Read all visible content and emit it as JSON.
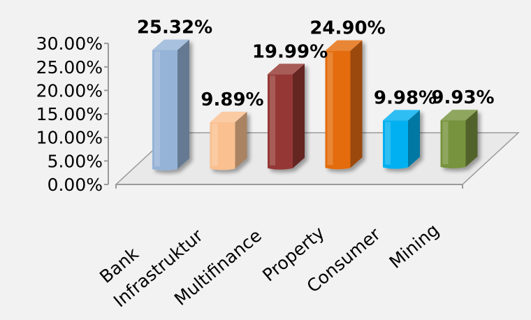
{
  "chart_data": {
    "type": "bar",
    "categories": [
      "Bank",
      "Infrastruktur",
      "Multifinance",
      "Property",
      "Consumer",
      "Mining"
    ],
    "values": [
      25.32,
      9.89,
      19.99,
      24.9,
      9.98,
      9.93
    ],
    "data_labels": [
      "25.32%",
      "9.89%",
      "19.99%",
      "24.90%",
      "9.98%",
      "9.93%"
    ],
    "y_ticks": [
      "0.00%",
      "5.00%",
      "10.00%",
      "15.00%",
      "20.00%",
      "25.00%",
      "30.00%"
    ],
    "ylim": [
      0,
      30
    ],
    "colors": [
      "#95b3d7",
      "#fac090",
      "#953735",
      "#e46c0a",
      "#00b0f0",
      "#77933c"
    ],
    "grid": false,
    "style": "3d-column"
  }
}
